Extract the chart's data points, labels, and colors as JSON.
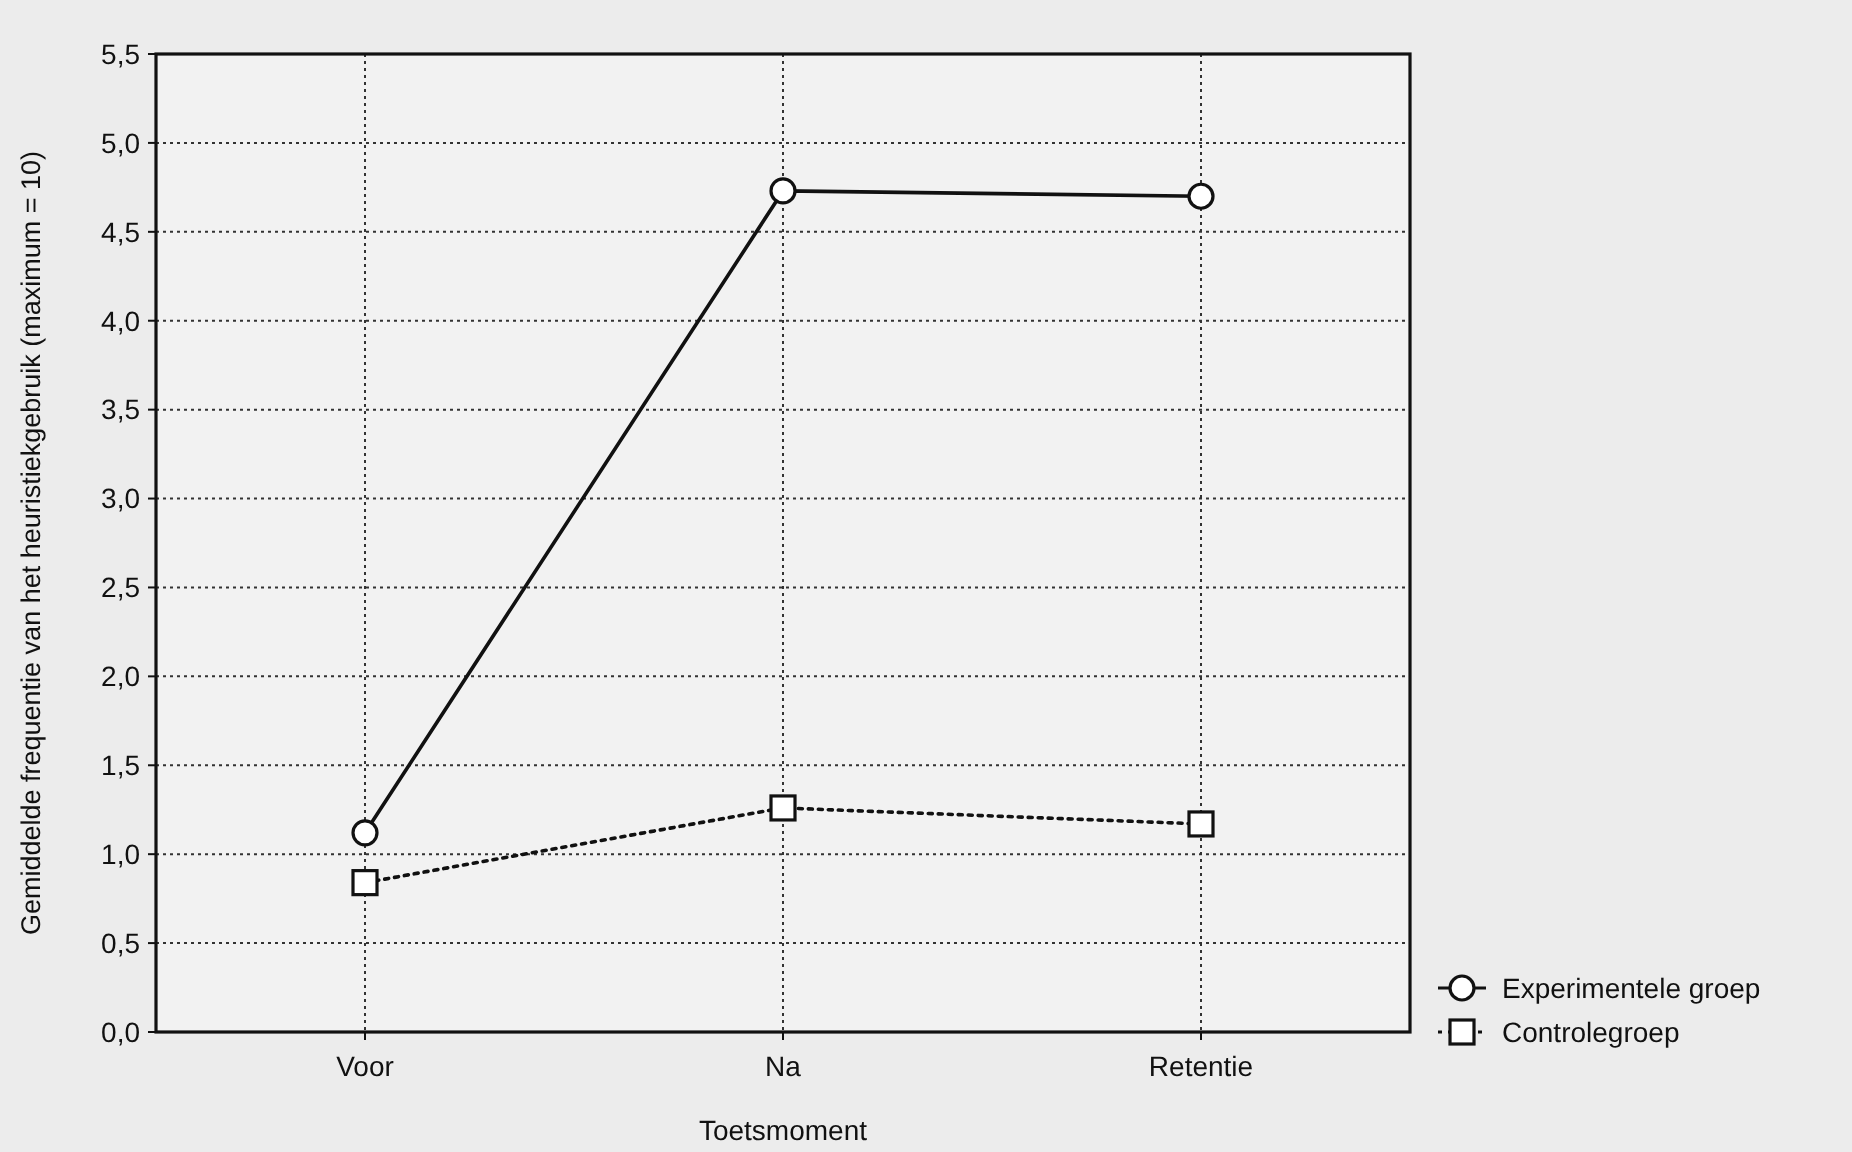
{
  "chart_data": {
    "type": "line",
    "xlabel": "Toetsmoment",
    "ylabel": "Gemiddelde frequentie van het heuristiekgebruik (maximum = 10)",
    "categories": [
      "Voor",
      "Na",
      "Retentie"
    ],
    "series": [
      {
        "name": "Experimentele groep",
        "color": "#111111",
        "values": [
          1.12,
          4.73,
          4.7
        ],
        "marker": "circle",
        "line_style": "solid"
      },
      {
        "name": "Controlegroep",
        "color": "#111111",
        "values": [
          0.84,
          1.26,
          1.17
        ],
        "marker": "square",
        "line_style": "dotted"
      }
    ],
    "ylim": [
      0,
      5.5
    ],
    "yticks": [
      {
        "value": 0,
        "label": "0,0"
      },
      {
        "value": 0.5,
        "label": "0,5"
      },
      {
        "value": 1,
        "label": "1,0"
      },
      {
        "value": 1.5,
        "label": "1,5"
      },
      {
        "value": 2,
        "label": "2,0"
      },
      {
        "value": 2.5,
        "label": "2,5"
      },
      {
        "value": 3,
        "label": "3,0"
      },
      {
        "value": 3.5,
        "label": "3,5"
      },
      {
        "value": 4,
        "label": "4,0"
      },
      {
        "value": 4.5,
        "label": "4,5"
      },
      {
        "value": 5,
        "label": "5,0"
      },
      {
        "value": 5.5,
        "label": "5,5"
      }
    ],
    "grid": true,
    "legend": "bottom right"
  }
}
